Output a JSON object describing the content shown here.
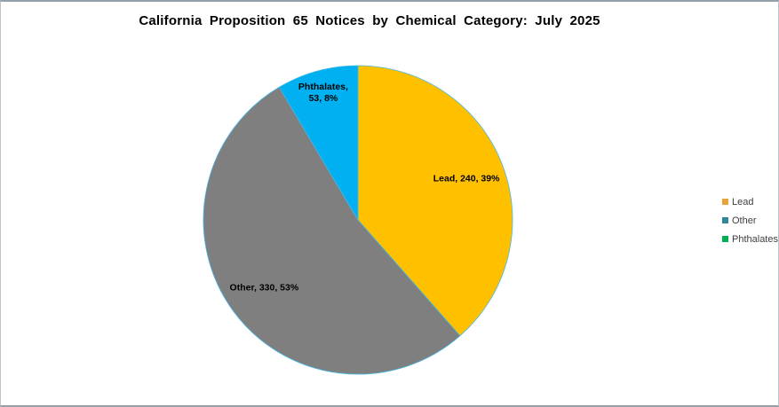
{
  "chart_data": {
    "type": "pie",
    "title": "California Proposition 65 Notices by Chemical Category: July 2025",
    "slices": [
      {
        "id": "lead",
        "name": "Lead",
        "value": 240,
        "pct": "39%",
        "color": "#FFC000",
        "label": "Lead, 240, 39%",
        "label_radius": 0.75
      },
      {
        "id": "other",
        "name": "Other",
        "value": 330,
        "pct": "53%",
        "color": "#7F7F7F",
        "label": "Other, 330, 53%",
        "label_radius": 0.75
      },
      {
        "id": "phthalates",
        "name": "Phthalates",
        "value": 53,
        "pct": "8%",
        "color": "#00B0F0",
        "label": "Phthalates,\n53, 8%",
        "label_radius": 0.85
      }
    ],
    "outline_color": "#45B8E6",
    "legend": {
      "position": "right",
      "items": [
        {
          "label": "Lead",
          "color": "#E8A33C"
        },
        {
          "label": "Other",
          "color": "#31859C"
        },
        {
          "label": "Phthalates",
          "color": "#00B050"
        }
      ]
    },
    "layout": {
      "start_angle_deg": -90,
      "direction": "clockwise"
    }
  }
}
